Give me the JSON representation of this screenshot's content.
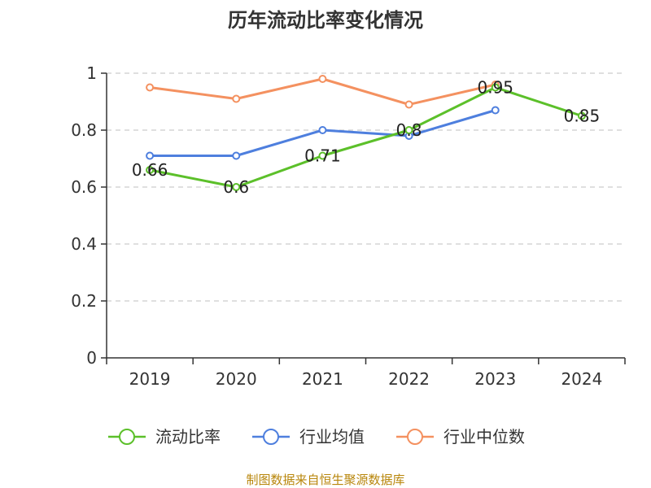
{
  "chart_data": {
    "type": "line",
    "title": "历年流动比率变化情况",
    "categories": [
      "2019",
      "2020",
      "2021",
      "2022",
      "2023",
      "2024"
    ],
    "ylim": [
      0,
      1
    ],
    "yticks": [
      "0",
      "0.2",
      "0.4",
      "0.6",
      "0.8",
      "1"
    ],
    "grid": true,
    "legend_position": "bottom",
    "series": [
      {
        "name": "流动比率",
        "color": "#5cc02a",
        "values": [
          0.66,
          0.6,
          0.71,
          0.8,
          0.95,
          0.85
        ],
        "labels": [
          "0.66",
          "0.6",
          "0.71",
          "0.8",
          "0.95",
          "0.85"
        ]
      },
      {
        "name": "行业均值",
        "color": "#4e7fde",
        "values": [
          0.71,
          0.71,
          0.8,
          0.78,
          0.87,
          null
        ]
      },
      {
        "name": "行业中位数",
        "color": "#f49160",
        "values": [
          0.95,
          0.91,
          0.98,
          0.89,
          0.96,
          null
        ]
      }
    ],
    "source": "制图数据来自恒生聚源数据库"
  }
}
